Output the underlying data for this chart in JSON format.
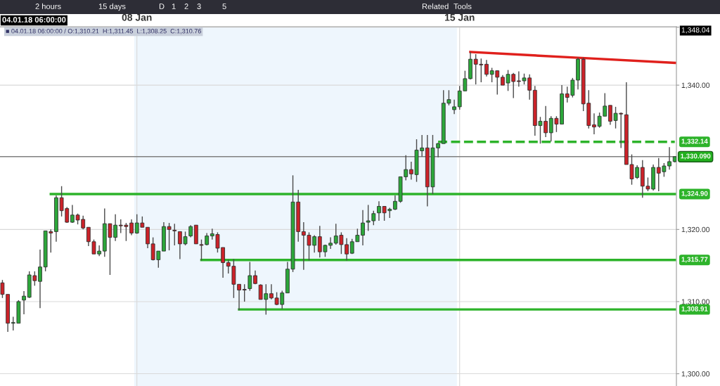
{
  "chart_data": {
    "type": "candlestick",
    "categories": [
      null,
      null,
      null,
      null,
      null,
      null,
      null,
      null,
      null,
      null,
      null,
      null,
      null,
      null,
      null,
      null,
      null,
      null,
      null,
      null,
      null,
      null,
      null,
      null,
      null,
      "08 Jan",
      null,
      null,
      null,
      null,
      null,
      null,
      null,
      null,
      null,
      null,
      null,
      null,
      null,
      null,
      null,
      null,
      null,
      null,
      null,
      null,
      null,
      null,
      null,
      null,
      null,
      null,
      null,
      null,
      null,
      null,
      null,
      null,
      null,
      null,
      null,
      null,
      null,
      null,
      null,
      null,
      null,
      null,
      null,
      null,
      null,
      null,
      null,
      null,
      null,
      null,
      null,
      null,
      null,
      null,
      null,
      null,
      null,
      null,
      null,
      "15 Jan",
      null,
      null,
      null,
      null,
      null,
      null,
      null,
      null,
      null,
      null,
      null,
      null,
      null,
      null,
      null,
      null,
      null,
      null,
      null,
      null,
      null,
      null,
      null,
      null,
      null,
      null,
      null,
      null,
      null,
      null,
      null,
      null,
      null,
      null,
      null,
      null,
      null,
      null,
      null,
      null
    ],
    "ohlc": [
      [
        1312.6,
        1313.0,
        1310.5,
        1311.0
      ],
      [
        1311.0,
        1311.0,
        1305.8,
        1307.0
      ],
      [
        1307.0,
        1307.9,
        1306.0,
        1307.1
      ],
      [
        1307.0,
        1310.2,
        1307.0,
        1310.0
      ],
      [
        1310.21,
        1311.45,
        1308.25,
        1310.76
      ],
      [
        1310.6,
        1314.2,
        1310.5,
        1313.7
      ],
      [
        1313.6,
        1314.2,
        1312.2,
        1312.9
      ],
      [
        1312.8,
        1317.2,
        1309.1,
        1314.8
      ],
      [
        1314.8,
        1319.8,
        1314.2,
        1319.8
      ],
      [
        1319.7,
        1320.0,
        1316.8,
        1319.5
      ],
      [
        1319.7,
        1324.7,
        1318.3,
        1324.4
      ],
      [
        1324.4,
        1326.0,
        1321.8,
        1322.6
      ],
      [
        1322.9,
        1323.1,
        1320.9,
        1321.0
      ],
      [
        1321.0,
        1323.4,
        1320.9,
        1322.0
      ],
      [
        1322.0,
        1322.2,
        1320.7,
        1321.3
      ],
      [
        1321.4,
        1321.9,
        1320.0,
        1320.2
      ],
      [
        1320.3,
        1320.3,
        1317.7,
        1318.3
      ],
      [
        1318.3,
        1318.6,
        1316.6,
        1316.6
      ],
      [
        1316.6,
        1317.8,
        1316.3,
        1317.0
      ],
      [
        1317.0,
        1322.9,
        1316.2,
        1320.8
      ],
      [
        1320.8,
        1320.8,
        1313.7,
        1318.9
      ],
      [
        1318.9,
        1322.1,
        1318.4,
        1320.6
      ],
      [
        1320.6,
        1321.4,
        1319.5,
        1320.5
      ],
      [
        1320.6,
        1320.9,
        1318.4,
        1320.4
      ],
      [
        1320.9,
        1321.4,
        1319.2,
        1319.5
      ],
      [
        1319.5,
        1322.1,
        1319.4,
        1320.9
      ],
      [
        1320.9,
        1321.8,
        1320.3,
        1320.3
      ],
      [
        1320.3,
        1320.3,
        1317.4,
        1318.0
      ],
      [
        1318.0,
        1318.9,
        1315.7,
        1315.8
      ],
      [
        1315.8,
        1317.0,
        1314.7,
        1317.0
      ],
      [
        1317.0,
        1321.0,
        1317.0,
        1320.4
      ],
      [
        1320.4,
        1320.9,
        1317.1,
        1320.0
      ],
      [
        1319.9,
        1320.8,
        1317.8,
        1319.8
      ],
      [
        1319.7,
        1319.7,
        1315.9,
        1318.0
      ],
      [
        1318.0,
        1319.7,
        1317.8,
        1319.0
      ],
      [
        1319.1,
        1320.6,
        1318.9,
        1320.4
      ],
      [
        1320.6,
        1320.6,
        1318.0,
        1318.0
      ],
      [
        1317.9,
        1318.6,
        1315.7,
        1317.8
      ],
      [
        1317.9,
        1319.5,
        1317.8,
        1319.1
      ],
      [
        1319.1,
        1320.1,
        1318.6,
        1319.4
      ],
      [
        1319.3,
        1319.6,
        1316.8,
        1317.4
      ],
      [
        1317.5,
        1317.5,
        1313.3,
        1315.4
      ],
      [
        1315.4,
        1315.8,
        1313.9,
        1314.9
      ],
      [
        1314.9,
        1315.9,
        1310.5,
        1312.4
      ],
      [
        1312.4,
        1312.4,
        1308.8,
        1311.6
      ],
      [
        1311.7,
        1312.4,
        1310.0,
        1311.6
      ],
      [
        1311.8,
        1315.5,
        1311.5,
        1313.6
      ],
      [
        1313.6,
        1314.3,
        1312.4,
        1312.5
      ],
      [
        1312.3,
        1312.4,
        1310.3,
        1310.3
      ],
      [
        1310.3,
        1312.4,
        1308.2,
        1311.1
      ],
      [
        1311.1,
        1312.4,
        1310.3,
        1310.5
      ],
      [
        1310.5,
        1311.3,
        1309.5,
        1309.6
      ],
      [
        1309.6,
        1311.5,
        1309.0,
        1311.2
      ],
      [
        1311.2,
        1315.5,
        1311.2,
        1314.5
      ],
      [
        1314.5,
        1327.5,
        1314.1,
        1323.8
      ],
      [
        1323.8,
        1325.5,
        1318.3,
        1319.7
      ],
      [
        1319.7,
        1321.0,
        1314.4,
        1319.2
      ],
      [
        1319.2,
        1319.6,
        1315.7,
        1317.8
      ],
      [
        1317.8,
        1319.2,
        1316.8,
        1319.0
      ],
      [
        1319.0,
        1320.5,
        1316.1,
        1316.9
      ],
      [
        1316.9,
        1317.9,
        1316.2,
        1317.8
      ],
      [
        1317.8,
        1318.9,
        1317.3,
        1318.1
      ],
      [
        1318.1,
        1320.8,
        1317.9,
        1319.1
      ],
      [
        1319.2,
        1319.6,
        1316.6,
        1317.9
      ],
      [
        1317.9,
        1318.8,
        1315.7,
        1316.6
      ],
      [
        1316.7,
        1318.7,
        1316.6,
        1318.3
      ],
      [
        1318.3,
        1320.1,
        1318.3,
        1319.2
      ],
      [
        1319.2,
        1322.7,
        1317.8,
        1320.9
      ],
      [
        1321.0,
        1323.4,
        1319.8,
        1321.2
      ],
      [
        1321.2,
        1322.6,
        1320.6,
        1322.2
      ],
      [
        1322.3,
        1323.9,
        1321.2,
        1323.2
      ],
      [
        1323.2,
        1323.2,
        1321.2,
        1322.3
      ],
      [
        1322.6,
        1323.0,
        1321.6,
        1322.8
      ],
      [
        1322.8,
        1324.7,
        1322.7,
        1323.9
      ],
      [
        1323.9,
        1327.3,
        1323.7,
        1327.3
      ],
      [
        1327.3,
        1330.3,
        1326.8,
        1328.3
      ],
      [
        1328.3,
        1329.4,
        1326.9,
        1327.7
      ],
      [
        1327.6,
        1332.5,
        1326.6,
        1331.0
      ],
      [
        1330.9,
        1333.1,
        1330.1,
        1331.3
      ],
      [
        1331.3,
        1333.1,
        1323.2,
        1325.9
      ],
      [
        1325.9,
        1333.1,
        1324.9,
        1331.3
      ],
      [
        1331.3,
        1332.0,
        1330.0,
        1331.9
      ],
      [
        1331.9,
        1339.3,
        1331.9,
        1337.5
      ],
      [
        1337.5,
        1339.3,
        1337.2,
        1338.0
      ],
      [
        1336.6,
        1338.0,
        1336.0,
        1337.0
      ],
      [
        1337.0,
        1339.9,
        1336.6,
        1339.2
      ],
      [
        1339.2,
        1342.0,
        1339.2,
        1340.9
      ],
      [
        1340.9,
        1344.6,
        1340.8,
        1343.6
      ],
      [
        1343.6,
        1344.3,
        1340.1,
        1342.9
      ],
      [
        1342.9,
        1343.7,
        1340.4,
        1342.8
      ],
      [
        1342.9,
        1343.5,
        1341.2,
        1341.5
      ],
      [
        1341.5,
        1342.4,
        1340.4,
        1342.0
      ],
      [
        1342.0,
        1342.0,
        1338.7,
        1341.1
      ],
      [
        1341.1,
        1341.4,
        1340.0,
        1340.0
      ],
      [
        1340.3,
        1342.1,
        1339.2,
        1341.5
      ],
      [
        1341.5,
        1341.7,
        1338.2,
        1340.5
      ],
      [
        1340.6,
        1341.9,
        1339.8,
        1340.5
      ],
      [
        1340.6,
        1341.6,
        1340.1,
        1341.0
      ],
      [
        1341.0,
        1341.5,
        1338.0,
        1339.3
      ],
      [
        1339.3,
        1339.9,
        1333.0,
        1334.4
      ],
      [
        1334.4,
        1335.6,
        1331.9,
        1335.0
      ],
      [
        1335.0,
        1337.1,
        1332.8,
        1333.4
      ],
      [
        1333.4,
        1335.7,
        1332.2,
        1335.4
      ],
      [
        1335.4,
        1335.7,
        1333.5,
        1334.6
      ],
      [
        1334.6,
        1340.0,
        1334.6,
        1338.8
      ],
      [
        1338.8,
        1339.8,
        1337.6,
        1338.3
      ],
      [
        1338.6,
        1341.0,
        1338.3,
        1340.7
      ],
      [
        1340.7,
        1343.8,
        1339.4,
        1343.6
      ],
      [
        1343.6,
        1343.8,
        1336.4,
        1337.4
      ],
      [
        1337.5,
        1339.3,
        1334.0,
        1334.4
      ],
      [
        1334.5,
        1336.1,
        1333.2,
        1334.2
      ],
      [
        1334.3,
        1336.2,
        1334.1,
        1335.7
      ],
      [
        1335.7,
        1338.9,
        1335.7,
        1337.1
      ],
      [
        1337.2,
        1337.2,
        1334.5,
        1335.0
      ],
      [
        1335.1,
        1337.0,
        1334.0,
        1336.1
      ],
      [
        1336.1,
        1336.2,
        1331.3,
        1336.0
      ],
      [
        1335.9,
        1340.4,
        1329.0,
        1329.0
      ],
      [
        1329.0,
        1330.4,
        1326.2,
        1327.0
      ],
      [
        1327.2,
        1328.9,
        1327.0,
        1328.6
      ],
      [
        1328.6,
        1329.6,
        1324.4,
        1326.0
      ],
      [
        1326.0,
        1327.2,
        1325.3,
        1325.6
      ],
      [
        1325.6,
        1329.0,
        1325.4,
        1328.6
      ],
      [
        1328.6,
        1329.9,
        1325.3,
        1327.8
      ],
      [
        1328.0,
        1329.2,
        1327.3,
        1328.8
      ],
      [
        1328.8,
        1331.4,
        1328.3,
        1329.4
      ],
      [
        1329.4,
        1330.1,
        1329.3,
        1330.09
      ]
    ],
    "colors": [
      "#cc2229",
      "#cc2229",
      "#2ca73a",
      "#2ca73a",
      "#2ca73a",
      "#2ca73a",
      "#cc2229",
      "#2ca73a",
      "#2ca73a",
      "#cc2229",
      "#2ca73a",
      "#cc2229",
      "#cc2229",
      "#2ca73a",
      "#cc2229",
      "#cc2229",
      "#cc2229",
      "#cc2229",
      "#2ca73a",
      "#2ca73a",
      "#cc2229",
      "#2ca73a",
      "#cc2229",
      "#cc2229",
      "#cc2229",
      "#2ca73a",
      "#cc2229",
      "#cc2229",
      "#cc2229",
      "#2ca73a",
      "#2ca73a",
      "#cc2229",
      "#cc2229",
      "#cc2229",
      "#2ca73a",
      "#2ca73a",
      "#cc2229",
      "#cc2229",
      "#2ca73a",
      "#2ca73a",
      "#cc2229",
      "#cc2229",
      "#cc2229",
      "#cc2229",
      "#cc2229",
      "#cc2229",
      "#2ca73a",
      "#cc2229",
      "#cc2229",
      "#2ca73a",
      "#cc2229",
      "#cc2229",
      "#2ca73a",
      "#2ca73a",
      "#2ca73a",
      "#cc2229",
      "#cc2229",
      "#cc2229",
      "#2ca73a",
      "#cc2229",
      "#2ca73a",
      "#2ca73a",
      "#2ca73a",
      "#cc2229",
      "#cc2229",
      "#2ca73a",
      "#2ca73a",
      "#2ca73a",
      "#2ca73a",
      "#2ca73a",
      "#2ca73a",
      "#cc2229",
      "#2ca73a",
      "#2ca73a",
      "#2ca73a",
      "#2ca73a",
      "#cc2229",
      "#2ca73a",
      "#2ca73a",
      "#cc2229",
      "#2ca73a",
      "#2ca73a",
      "#2ca73a",
      "#2ca73a",
      "#2ca73a",
      "#2ca73a",
      "#2ca73a",
      "#2ca73a",
      "#cc2229",
      "#cc2229",
      "#cc2229",
      "#2ca73a",
      "#cc2229",
      "#cc2229",
      "#2ca73a",
      "#cc2229",
      "#cc2229",
      "#2ca73a",
      "#cc2229",
      "#cc2229",
      "#2ca73a",
      "#cc2229",
      "#2ca73a",
      "#cc2229",
      "#2ca73a",
      "#cc2229",
      "#2ca73a",
      "#2ca73a",
      "#cc2229",
      "#cc2229",
      "#cc2229",
      "#2ca73a",
      "#2ca73a",
      "#cc2229",
      "#2ca73a",
      "#cc2229",
      "#cc2229",
      "#cc2229",
      "#2ca73a",
      "#cc2229",
      "#cc2229",
      "#2ca73a",
      "#cc2229",
      "#2ca73a",
      "#2ca73a",
      "#2ca73a"
    ],
    "series": [
      {
        "type": "line",
        "name": "1,324.90",
        "color": "#2db32a",
        "line_style": "solid",
        "values": [
          null,
          null,
          null,
          null,
          null,
          null,
          null,
          null,
          null,
          1324.9,
          null,
          null,
          null,
          null,
          null,
          null,
          null,
          null,
          null,
          null,
          null,
          null,
          null,
          null,
          null,
          null,
          null,
          null,
          null,
          null,
          null,
          null,
          null,
          null,
          null,
          null,
          null,
          null,
          null,
          null,
          null,
          null,
          null,
          null,
          null,
          null,
          null,
          null,
          null,
          null,
          null,
          null,
          null,
          null,
          null,
          null,
          null,
          null,
          null,
          null,
          null,
          null,
          null,
          null,
          null,
          null,
          null,
          null,
          null,
          null,
          null,
          null,
          null,
          null,
          null,
          null,
          null,
          null,
          null,
          null,
          null,
          null,
          null,
          null,
          null,
          null,
          null,
          null,
          null,
          null,
          null,
          null,
          null,
          null,
          null,
          null,
          null,
          null,
          null,
          null,
          null,
          null,
          null,
          null,
          null,
          null,
          null,
          null,
          null,
          null,
          null,
          null,
          null,
          null,
          null,
          null,
          null,
          null,
          null,
          null,
          null,
          null,
          null,
          null,
          null,
          1324.9
        ]
      },
      {
        "type": "line",
        "name": "1,315.77",
        "color": "#2db32a",
        "line_style": "solid",
        "values": [
          null,
          null,
          null,
          null,
          null,
          null,
          null,
          null,
          null,
          null,
          null,
          null,
          null,
          null,
          null,
          null,
          null,
          null,
          null,
          null,
          null,
          null,
          null,
          null,
          null,
          null,
          null,
          null,
          null,
          null,
          null,
          null,
          null,
          null,
          null,
          null,
          null,
          1315.77,
          null,
          null,
          null,
          null,
          null,
          null,
          null,
          null,
          null,
          null,
          null,
          null,
          null,
          null,
          null,
          null,
          null,
          null,
          null,
          null,
          null,
          null,
          null,
          null,
          null,
          null,
          null,
          null,
          null,
          null,
          null,
          null,
          null,
          null,
          null,
          null,
          null,
          null,
          null,
          null,
          null,
          null,
          null,
          null,
          null,
          null,
          null,
          null,
          null,
          null,
          null,
          null,
          null,
          null,
          null,
          null,
          null,
          null,
          null,
          null,
          null,
          null,
          null,
          null,
          null,
          null,
          null,
          null,
          null,
          null,
          null,
          null,
          null,
          null,
          null,
          null,
          null,
          null,
          null,
          null,
          null,
          null,
          null,
          null,
          null,
          null,
          null,
          1315.77
        ]
      },
      {
        "type": "line",
        "name": "1,308.91",
        "color": "#2db32a",
        "line_style": "solid",
        "values": [
          null,
          null,
          null,
          null,
          null,
          null,
          null,
          null,
          null,
          null,
          null,
          null,
          null,
          null,
          null,
          null,
          null,
          null,
          null,
          null,
          null,
          null,
          null,
          null,
          null,
          null,
          null,
          null,
          null,
          null,
          null,
          null,
          null,
          null,
          null,
          null,
          null,
          null,
          null,
          null,
          null,
          null,
          null,
          null,
          1308.91,
          null,
          null,
          null,
          null,
          null,
          null,
          null,
          null,
          null,
          null,
          null,
          null,
          null,
          null,
          null,
          null,
          null,
          null,
          null,
          null,
          null,
          null,
          null,
          null,
          null,
          null,
          null,
          null,
          null,
          null,
          null,
          null,
          null,
          null,
          null,
          null,
          null,
          null,
          null,
          null,
          null,
          null,
          null,
          null,
          null,
          null,
          null,
          null,
          null,
          null,
          null,
          null,
          null,
          null,
          null,
          null,
          null,
          null,
          null,
          null,
          null,
          null,
          null,
          null,
          null,
          null,
          null,
          null,
          null,
          null,
          null,
          null,
          null,
          null,
          null,
          null,
          null,
          null,
          null,
          null,
          1308.91
        ]
      },
      {
        "type": "line",
        "name": "1,332.14",
        "color": "#2db32a",
        "line_style": "dashed",
        "values": [
          null,
          null,
          null,
          null,
          null,
          null,
          null,
          null,
          null,
          null,
          null,
          null,
          null,
          null,
          null,
          null,
          null,
          null,
          null,
          null,
          null,
          null,
          null,
          null,
          null,
          null,
          null,
          null,
          null,
          null,
          null,
          null,
          null,
          null,
          null,
          null,
          null,
          null,
          null,
          null,
          null,
          null,
          null,
          null,
          null,
          null,
          null,
          null,
          null,
          null,
          null,
          null,
          null,
          null,
          null,
          null,
          null,
          null,
          null,
          null,
          null,
          null,
          null,
          null,
          null,
          null,
          null,
          null,
          null,
          null,
          null,
          null,
          null,
          null,
          null,
          null,
          null,
          null,
          null,
          null,
          null,
          1332.14,
          null,
          null,
          null,
          null,
          null,
          null,
          null,
          null,
          null,
          null,
          null,
          null,
          null,
          null,
          null,
          null,
          null,
          null,
          null,
          null,
          null,
          null,
          null,
          null,
          null,
          null,
          null,
          null,
          null,
          null,
          null,
          null,
          null,
          null,
          null,
          null,
          null,
          null,
          null,
          null,
          null,
          null,
          null,
          1332.14
        ]
      },
      {
        "type": "line",
        "color": "#e0201c",
        "line_style": "solid",
        "values": [
          null,
          null,
          null,
          null,
          null,
          null,
          null,
          null,
          null,
          null,
          null,
          null,
          null,
          null,
          null,
          null,
          null,
          null,
          null,
          null,
          null,
          null,
          null,
          null,
          null,
          null,
          null,
          null,
          null,
          null,
          null,
          null,
          null,
          null,
          null,
          null,
          null,
          null,
          null,
          null,
          null,
          null,
          null,
          null,
          null,
          null,
          null,
          null,
          null,
          null,
          null,
          null,
          null,
          null,
          null,
          null,
          null,
          null,
          null,
          null,
          null,
          null,
          null,
          null,
          null,
          null,
          null,
          null,
          null,
          null,
          null,
          null,
          null,
          null,
          null,
          null,
          null,
          null,
          null,
          null,
          null,
          null,
          null,
          null,
          null,
          null,
          null,
          1344.6,
          null,
          null,
          null,
          null,
          null,
          null,
          null,
          null,
          null,
          null,
          null,
          null,
          null,
          null,
          null,
          null,
          null,
          null,
          null,
          1343.8,
          null,
          null,
          null,
          null,
          null,
          null,
          null,
          null,
          null,
          null,
          null,
          null,
          null,
          null,
          null,
          null,
          null,
          1343.1
        ]
      }
    ],
    "ref_lines": [
      {
        "axis": "y",
        "value": 1330.09,
        "label": "1,330.090",
        "color": "#808080"
      }
    ],
    "bands": [
      {
        "axis": "x",
        "from": "08 Jan",
        "to": "15 Jan",
        "color": "#eef6fd"
      }
    ],
    "ylim": [
      1298.3,
      1348.1
    ],
    "yticks": [
      {
        "value": 1300,
        "label": "1,300.00"
      },
      {
        "value": 1310,
        "label": "1,310.00"
      },
      {
        "value": 1320,
        "label": "1,320.00"
      },
      {
        "value": 1340,
        "label": "1,340.00"
      },
      {
        "value": 1348.04,
        "label": "1,348.04"
      }
    ],
    "grid": true,
    "annotations": [
      "04.01.18 06:00:00",
      "■ 04.01.18 06:00:00 / O:1,310.21  H:1,311.45  L:1,308.25  C:1,310.76",
      "2 hours",
      "15 days",
      "D",
      "1",
      "2",
      "3",
      "5",
      "Related",
      "Tools"
    ]
  }
}
